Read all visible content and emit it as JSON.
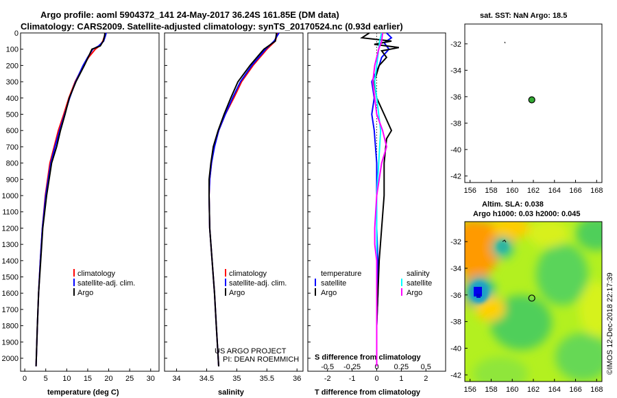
{
  "header": {
    "title_line1": "Argo profile: aoml 5904372_141 24-May-2017 36.24S 161.85E (DM data)",
    "title_line2": "Climatology: CARS2009. Satellite-adjusted climatology: synTS_20170524.nc (0.93d earlier)"
  },
  "colors": {
    "climatology": "#ff0000",
    "satellite": "#0000ff",
    "argo": "#000000",
    "sal_satellite": "#00ffff",
    "sal_argo": "#ff00ff",
    "map_marker": "#33aa33"
  },
  "chart_data": [
    {
      "id": "temperature",
      "type": "line",
      "xlabel": "temperature (deg C)",
      "ylabel": "",
      "xlim": [
        -1,
        32
      ],
      "ylim": [
        2080,
        0
      ],
      "xticks": [
        0,
        5,
        10,
        15,
        20,
        25,
        30
      ],
      "yticks": [
        0,
        100,
        200,
        300,
        400,
        500,
        600,
        700,
        800,
        900,
        1000,
        1100,
        1200,
        1300,
        1400,
        1500,
        1600,
        1700,
        1800,
        1900,
        2000
      ],
      "legend": [
        "climatology",
        "satellite-adj. clim.",
        "Argo"
      ],
      "series": [
        {
          "name": "climatology",
          "color": "red",
          "depth": [
            0,
            20,
            50,
            80,
            100,
            150,
            200,
            300,
            400,
            500,
            600,
            700,
            800,
            1000,
            1200,
            1400,
            1600,
            1800,
            2050
          ],
          "values": [
            19.3,
            19.0,
            18.6,
            17.8,
            16.8,
            15.2,
            14.0,
            12.0,
            10.5,
            9.3,
            8.0,
            7.0,
            6.0,
            4.9,
            4.2,
            3.7,
            3.3,
            3.0,
            2.7
          ]
        },
        {
          "name": "satellite-adj. clim.",
          "color": "blue",
          "depth": [
            0,
            20,
            50,
            80,
            100,
            150,
            200,
            300,
            400,
            500,
            600,
            700,
            800,
            1000,
            1200,
            1400,
            1600,
            1800,
            2050
          ],
          "values": [
            19.4,
            19.2,
            18.8,
            17.6,
            16.2,
            15.0,
            13.9,
            12.1,
            10.7,
            9.5,
            8.3,
            7.2,
            6.2,
            5.0,
            4.2,
            3.7,
            3.3,
            3.0,
            2.7
          ]
        },
        {
          "name": "Argo",
          "color": "black",
          "depth": [
            0,
            20,
            50,
            80,
            100,
            150,
            200,
            300,
            400,
            500,
            600,
            700,
            800,
            1000,
            1200,
            1400,
            1600,
            1800,
            2050
          ],
          "values": [
            19.1,
            19.0,
            18.7,
            18.0,
            16.0,
            15.1,
            14.2,
            12.2,
            10.6,
            9.6,
            8.5,
            7.6,
            6.4,
            5.2,
            4.3,
            3.8,
            3.3,
            3.0,
            2.7
          ]
        }
      ]
    },
    {
      "id": "salinity",
      "type": "line",
      "xlabel": "salinity",
      "ylabel": "",
      "xlim": [
        33.8,
        36.1
      ],
      "ylim": [
        2080,
        0
      ],
      "xticks": [
        34,
        34.5,
        35,
        35.5,
        36
      ],
      "legend": [
        "climatology",
        "satellite-adj. clim.",
        "Argo"
      ],
      "credits": [
        "US ARGO PROJECT",
        "PI: DEAN ROEMMICH"
      ],
      "series": [
        {
          "name": "climatology",
          "color": "red",
          "depth": [
            0,
            50,
            100,
            200,
            300,
            400,
            500,
            600,
            700,
            800,
            900,
            1000,
            1200,
            1400,
            1600,
            1800,
            2050
          ],
          "values": [
            35.68,
            35.64,
            35.5,
            35.27,
            35.08,
            34.95,
            34.81,
            34.7,
            34.62,
            34.58,
            34.55,
            34.54,
            34.55,
            34.59,
            34.63,
            34.66,
            34.7
          ]
        },
        {
          "name": "satellite-adj. clim.",
          "color": "blue",
          "depth": [
            0,
            50,
            100,
            200,
            300,
            400,
            500,
            600,
            700,
            800,
            900,
            1000,
            1200,
            1400,
            1600,
            1800,
            2050
          ],
          "values": [
            35.7,
            35.62,
            35.48,
            35.25,
            35.06,
            34.93,
            34.81,
            34.7,
            34.63,
            34.58,
            34.55,
            34.54,
            34.55,
            34.59,
            34.63,
            34.66,
            34.7
          ]
        },
        {
          "name": "Argo",
          "color": "black",
          "depth": [
            0,
            50,
            100,
            200,
            300,
            400,
            500,
            600,
            700,
            800,
            900,
            1000,
            1200,
            1400,
            1600,
            1800,
            2050
          ],
          "values": [
            35.66,
            35.64,
            35.45,
            35.22,
            35.02,
            34.9,
            34.79,
            34.69,
            34.61,
            34.57,
            34.54,
            34.54,
            34.55,
            34.59,
            34.63,
            34.66,
            34.7
          ]
        }
      ]
    },
    {
      "id": "difference",
      "type": "line",
      "xlabel": "T difference from climatology",
      "ylabel": "",
      "xlim": [
        -2.8,
        2.8
      ],
      "ylim": [
        2080,
        0
      ],
      "xticks": [
        -2,
        -1,
        0,
        1,
        2
      ],
      "top_axis_label": "S difference from climatology",
      "top_ticks": [
        -0.5,
        -0.25,
        0,
        0.25,
        0.5
      ],
      "top_tick_labels": [
        "-0.5",
        "-0.25",
        "0",
        "0.25",
        "0.5"
      ],
      "legend_temperature": {
        "heading": "temperature",
        "items": [
          "satellite",
          "Argo"
        ]
      },
      "legend_salinity": {
        "heading": "salinity",
        "items": [
          "satellite",
          "Argo"
        ]
      },
      "series": [
        {
          "name": "T satellite",
          "color": "blue",
          "depth": [
            0,
            30,
            60,
            100,
            150,
            200,
            300,
            400,
            500,
            600,
            800,
            1000,
            1200,
            1400,
            1600,
            1800,
            2050
          ],
          "values": [
            0.4,
            0.6,
            0.3,
            0.5,
            0.2,
            0.1,
            -0.2,
            -0.1,
            -0.2,
            -0.1,
            0.0,
            0.0,
            0.0,
            0.05,
            0.05,
            0.0,
            0.0
          ]
        },
        {
          "name": "T Argo",
          "color": "black",
          "depth": [
            0,
            30,
            50,
            70,
            90,
            110,
            150,
            200,
            300,
            400,
            500,
            600,
            650,
            800,
            1000,
            1200,
            1400,
            1600,
            1800,
            2050
          ],
          "values": [
            -0.3,
            -0.6,
            0.6,
            -0.1,
            0.9,
            0.2,
            0.4,
            0.1,
            -0.1,
            0.0,
            0.3,
            0.6,
            0.4,
            0.3,
            0.3,
            0.2,
            0.1,
            0.05,
            0.0,
            0.0
          ]
        },
        {
          "name": "S satellite",
          "color": "cyan",
          "depth": [
            0,
            50,
            100,
            200,
            300,
            400,
            500,
            600,
            800,
            1000,
            1200,
            1400,
            1600,
            1800,
            2050
          ],
          "values": [
            0.05,
            0.03,
            0.02,
            0.0,
            -0.02,
            0.0,
            0.02,
            0.04,
            0.02,
            0.0,
            0.0,
            0.0,
            0.0,
            0.0,
            0.0
          ]
        },
        {
          "name": "S Argo",
          "color": "magenta",
          "depth": [
            0,
            50,
            100,
            200,
            300,
            400,
            500,
            600,
            700,
            800,
            1000,
            1200,
            1300,
            1400,
            1600,
            1800,
            2050
          ],
          "values": [
            0.06,
            0.05,
            0.02,
            -0.02,
            -0.04,
            -0.02,
            0.0,
            0.06,
            0.1,
            0.05,
            0.0,
            -0.02,
            -0.02,
            0.0,
            0.0,
            0.0,
            0.0
          ]
        }
      ]
    },
    {
      "id": "sst_map",
      "type": "scatter",
      "title": "sat. SST: NaN Argo: 18.5",
      "xlim": [
        155.5,
        168.5
      ],
      "ylim": [
        -42.5,
        -30.5
      ],
      "xticks": [
        156,
        158,
        160,
        162,
        164,
        166,
        168
      ],
      "yticks": [
        -32,
        -34,
        -36,
        -38,
        -40,
        -42
      ],
      "points": [
        {
          "lon": 161.85,
          "lat": -36.24
        }
      ]
    },
    {
      "id": "sla_map",
      "type": "heatmap",
      "title_line1": "Altim. SLA: 0.038",
      "title_line2": "Argo h1000: 0.03 h2000: 0.045",
      "xlim": [
        155.5,
        168.5
      ],
      "ylim": [
        -42.5,
        -30.5
      ],
      "xticks": [
        156,
        158,
        160,
        162,
        164,
        166,
        168
      ],
      "yticks": [
        -32,
        -34,
        -36,
        -38,
        -40,
        -42
      ],
      "points": [
        {
          "lon": 161.85,
          "lat": -36.24
        }
      ]
    }
  ],
  "watermark": "©IMOS 12-Dec-2018 22:17:39"
}
